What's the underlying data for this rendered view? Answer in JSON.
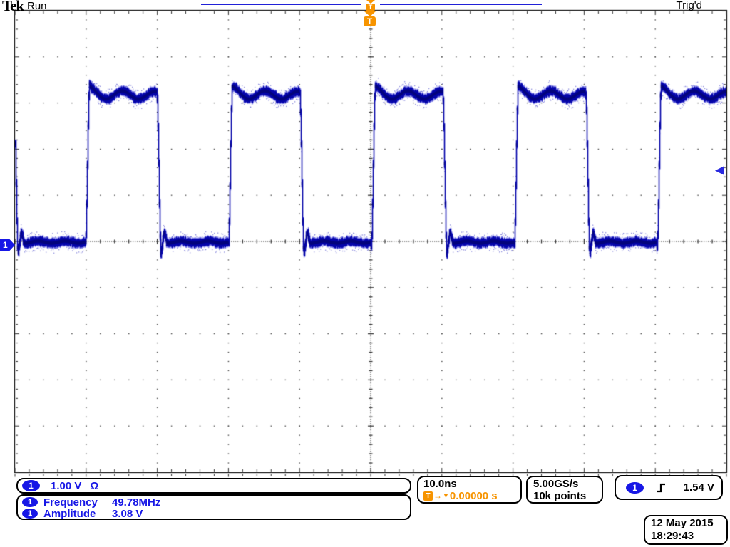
{
  "header": {
    "logo": "Tek",
    "acq_status": "Run",
    "trig_status": "Trig'd"
  },
  "channel": {
    "number": "1",
    "scale": "1.00 V",
    "coupling": "Ω"
  },
  "measurements": {
    "rows": [
      {
        "source": "1",
        "name": "Frequency",
        "value": "49.78MHz"
      },
      {
        "source": "1",
        "name": "Amplitude",
        "value": "3.08 V"
      }
    ]
  },
  "horizontal": {
    "scale": "10.0ns",
    "trig_icon_letter": "T",
    "delay_arrow": "→",
    "delay_marker": "▼",
    "delay": "0.00000 s"
  },
  "acquisition": {
    "sample_rate": "5.00GS/s",
    "record_length": "10k points"
  },
  "trigger": {
    "source": "1",
    "marker_letter": "T",
    "level": "1.54 V"
  },
  "datetime": {
    "date": "12 May 2015",
    "time": "18:29:43"
  },
  "colors": {
    "channel_blue": "#1717e6",
    "trace_blue": "#0000a6",
    "trigger_orange": "#f79400",
    "record_line_blue": "#2121d8"
  },
  "chart_data": {
    "type": "line",
    "title": "Oscilloscope CH1 trace",
    "x_axis": {
      "units": "ns",
      "per_div": 10.0,
      "divisions": 10,
      "range_ns": [
        -50,
        50
      ],
      "trigger_at_ns": 0
    },
    "y_axis": {
      "units": "V",
      "per_div": 1.0,
      "divisions": 10,
      "range_v": [
        -5,
        5
      ],
      "ground_v": 0
    },
    "series": [
      {
        "name": "CH1",
        "shape": "square",
        "frequency_mhz": 49.78,
        "period_ns": 20.09,
        "duty_cycle": 0.5,
        "low_v": 0.0,
        "high_v": 3.1,
        "amplitude_v": 3.08,
        "plateau_center_v": 3.17,
        "ripple_v": 0.105,
        "overshoot_v": 0.25,
        "undershoot_v": -0.26,
        "rising_edges_ns": [
          -40.2,
          -20.1,
          0,
          20.1,
          40.2
        ],
        "color": "#0000a6"
      }
    ],
    "trigger": {
      "level_v": 1.54,
      "type": "edge",
      "slope": "rising",
      "source": "CH1",
      "position_ns": 0
    },
    "grid": "dotted 10x10 graticule with center crosshair axes"
  }
}
